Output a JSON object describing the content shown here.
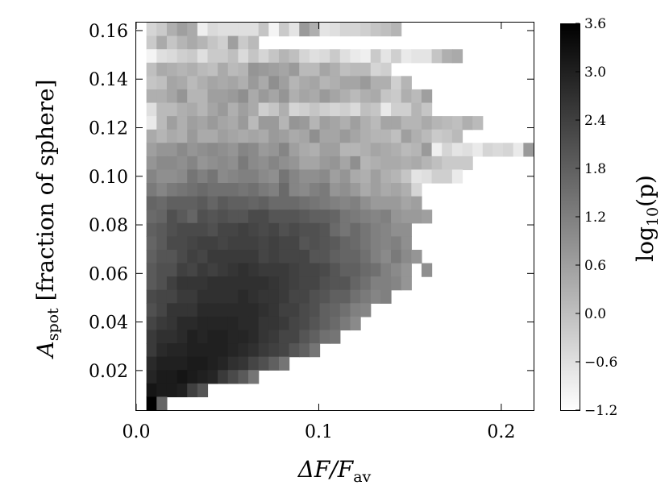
{
  "chart_data": {
    "type": "heatmap",
    "title": "",
    "xlabel": {
      "main": "ΔF/F",
      "sub": "av"
    },
    "ylabel": {
      "main": "A",
      "sub": "spot",
      "rest": " [fraction of sphere]"
    },
    "colorbar_label": {
      "main": "log",
      "sub": "10",
      "rest": "(p)"
    },
    "xlim": [
      0.0,
      0.2177
    ],
    "ylim": [
      0.0037,
      0.1633
    ],
    "x_ticks": [
      "0.0",
      "0.1",
      "0.2"
    ],
    "y_ticks": [
      "0.02",
      "0.04",
      "0.06",
      "0.08",
      "0.10",
      "0.12",
      "0.14",
      "0.16"
    ],
    "colorbar_ticks": [
      "3.6",
      "3.0",
      "2.4",
      "1.8",
      "1.2",
      "0.6",
      "0.0",
      "−0.6",
      "−1.2"
    ],
    "color_range": [
      -1.2,
      3.6
    ],
    "colormap": "gray_r",
    "grid": false,
    "x_bin_edges": [
      0.0,
      0.2177,
      39
    ],
    "y_bin_edges": [
      0.0037,
      0.1633,
      29
    ],
    "log10_p_rows_top_to_bottom": [
      "- -0.4 -0.2 0.3 0.6 0.4 -0.9 -0.5 -0.6 -0.6 -0.6 -0.6 -0.1 -1.0 -0.2 -0.7 0.7 0.3 -0.7 -0.6 -0.4 -0.4 -0.3 -0.1 -0.0 0.2 - - - - - - - - - - - - -",
      "- -0.2 0.4 -0.1 0.2 0.4 0.2 -0.1 -0.3 0.6 -0.2 0.1 - - - - - - - - - - - - - - - - - - - - - - - - - - -",
      "- -1.0 -0.6 -0.5 -0.3 -0.2 -0.6 -0.2 -0.2 0.0 -0.5 -0.1 -0.4 -0.1 0.2 -0.0 -0.4 -0.6 -0.5 -0.2 -0.6 -0.8 -0.9 -0.2 -0.7 -0.3 -0.8 -0.7 -0.7 -0.1 0.3 0.4 - - - - - - -",
      "- 0.0 0.4 0.3 0.2 0.3 0.1 -0.0 0.4 0.1 0.2 0.8 0.7 0.6 0.5 0.7 0.1 0.1 0.5 0.3 0.0 0.1 0.1 -0.4 -0.3 - - - - - - - - - - - - - -",
      "- -0.1 0.0 0.5 0.4 0.1 0.3 0.5 0.4 0.5 0.3 0.7 0.4 0.9 0.6 0.2 0.4 0.5 0.2 0.3 0.5 0.5 0.7 0.3 0.3 -0.3 0.2 - - - - - - - - - - - -",
      "- 0.3 0.3 0.5 0.8 0.2 0.2 0.6 0.6 0.7 0.9 0.4 0.7 0.5 0.8 0.3 0.5 0.4 0.7 0.5 0.3 0.1 0.3 0.4 -0.1 -0.2 0.3 0.1 0.6 - - - - - - - - - -",
      "- -0.6 0.1 0.1 0.3 0.4 0.2 0.5 0.7 0.3 0.6 0.4 -0.3 -0.1 0.3 -0.4 -0.3 -0.1 -0.3 -0.4 -0.3 -0.5 0.0 -0.1 -0.8 -0.3 -0.3 0.2 -0.1 - - - - - - - - - -",
      "- -0.8 0.1 0.6 0.3 0.6 0.5 0.7 0.5 0.4 0.7 0.1 0.7 0.7 0.2 0.8 0.7 0.2 0.6 0.5 0.3 0.6 0.3 0.1 0.5 0.5 0.2 0.2 0.4 0.2 0.1 -0.0 0.3 0.1 - - - - -",
      "- 0.4 0.2 0.4 0.3 0.7 0.4 0.4 0.6 0.5 0.4 0.5 0.4 0.7 0.6 0.4 0.5 0.9 0.5 0.5 0.7 0.5 0.3 0.2 0.2 0.0 0.6 0.3 0.1 -0.2 -0.1 0.1 - - - - - - -",
      "- 0.6 0.8 0.8 1.0 0.8 0.9 1.0 0.9 0.8 1.1 1.0 0.7 0.8 1.1 0.6 0.4 0.3 0.6 0.6 0.2 0.2 0.3 0.5 0.4 0.3 0.1 0.2 0.7 -0.9 -0.4 -0.7 -0.6 -0.8 -0.4 -0.5 -0.4 -0.8 0.7",
      "- 0.8 1.0 1.0 0.9 1.1 0.8 0.9 1.0 0.9 1.3 1.0 0.9 1.1 0.9 0.8 0.5 0.5 0.7 0.8 0.5 0.9 0.2 0.3 0.4 0.4 0.3 0.4 0.2 0.0 -0.2 -0.2 -0.2 - - - - - -",
      "- 1.1 0.9 0.9 1.0 1.4 1.2 1.4 1.0 1.1 1.2 1.2 1.0 0.9 1.4 1.1 0.9 0.9 1.0 0.6 0.8 0.4 0.3 0.6 0.3 0.2 -0.1 -0.7 -0.6 -0.3 -0.3 -0.8 - - - - - - -",
      "- 1.3 1.1 1.3 1.4 1.5 1.6 1.5 1.5 1.5 1.4 1.5 1.3 1.2 1.6 1.1 1.0 1.2 1.3 0.8 0.9 0.7 0.4 0.6 0.4 0.5 0.3 -0.4 - - - - - - - - - - -",
      "- 1.7 1.6 1.8 1.8 1.8 1.9 1.7 1.9 1.8 1.8 1.7 1.8 1.6 1.6 1.6 1.5 1.4 1.3 1.2 1.1 1.2 0.9 0.7 0.7 0.7 0.5 0.6 - - - - - - - - - - -",
      "- 1.6 1.7 2.1 1.9 1.7 2.1 2.0 2.1 2.0 2.0 2.2 2.2 2.0 2.0 2.0 1.9 1.8 1.8 1.7 1.4 1.3 1.2 1.1 1.2 0.8 0.7 0.7 0.6 - - - - - - - - - -",
      "- 1.8 1.9 2.1 2.2 2.2 2.2 2.1 2.3 2.3 2.4 2.3 2.2 2.3 2.1 2.2 2.1 2.1 2.0 1.6 1.4 1.6 1.4 1.2 1.1 0.9 0.9 - - - - - - - - - - - -",
      "- 1.7 1.9 2.2 2.2 2.3 2.4 2.4 2.3 2.4 2.4 2.4 2.3 2.4 2.3 2.3 2.0 2.1 2.0 1.9 1.7 1.6 1.4 1.2 1.1 1.2 0.9 - - - - - - - - - - - -",
      "- 1.8 2.0 2.0 2.2 2.4 2.3 2.5 2.5 2.5 2.5 2.5 2.3 2.4 2.3 2.3 2.3 2.0 2.0 1.8 1.7 1.7 1.5 1.2 1.0 1.3 1.0 0.8 - - - - - - - - - - -",
      "- 1.9 2.1 2.1 2.4 2.3 2.5 2.4 2.5 2.6 2.7 2.6 2.5 2.5 2.5 2.4 2.3 2.3 2.2 2.0 1.8 1.8 1.6 1.5 1.2 1.0 0.8 - 0.9 - - - - - - - - - -",
      "- 1.9 2.1 2.4 2.6 2.6 2.6 2.7 2.7 2.7 2.7 2.7 2.7 2.6 2.5 2.4 2.3 2.3 2.1 2.0 2.0 1.7 1.5 1.2 1.2 1.1 0.8 - - - - - - - - - - - -",
      "- 2.2 2.3 2.3 2.5 2.5 2.7 2.7 2.7 2.7 2.8 2.7 2.6 2.6 2.5 2.3 2.3 2.1 2.0 1.8 1.8 1.5 1.3 1.1 1.2 - - - - - - - - - - - - - -",
      "- 2.1 2.3 2.6 2.6 2.6 2.8 2.8 2.8 2.8 2.8 2.8 2.7 2.6 2.4 2.4 2.2 2.1 1.8 1.7 1.5 1.2 1.1 - - - - - - - - - - - - - - - -",
      "- 2.3 2.5 2.6 2.8 2.8 2.9 2.9 2.9 2.9 2.8 2.8 2.6 2.6 2.5 2.3 2.2 2.0 1.8 1.6 1.3 1.0 - - - - - - - - - - - - - - - - -",
      "- 2.5 2.7 2.7 2.8 3.0 2.9 3.0 3.0 2.9 2.9 2.8 2.6 2.5 2.3 2.3 2.0 1.8 1.5 1.4 - - - - - - - - - - - - - - - - - - -",
      "- 2.5 2.8 2.9 2.9 3.0 3.0 3.0 3.0 2.9 2.8 2.7 2.5 2.4 2.3 2.0 1.8 1.4 - - - - - - - - - - - - - - - - - - - - -",
      "- 2.8 3.0 3.0 3.0 3.1 3.1 3.0 2.9 2.7 2.6 2.3 2.1 1.8 1.4 - - - - - - - - - - - - - - - - - - - - - - - -",
      "- 2.9 3.1 3.1 3.2 3.1 3.0 2.9 2.5 2.2 1.9 1.4 - - - - - - - - - - - - - - - - - - - - - - - - - - -",
      "- 3.2 3.1 3.1 3.0 2.4 2.0 - - - - - - - - - - - - - - - - - - - - - - - - - - - - - - - -",
      "- 3.6 1.7 - - - - - - - - - - - - - - - - - - - - - - - - - - - - - - - - - - - -"
    ]
  }
}
